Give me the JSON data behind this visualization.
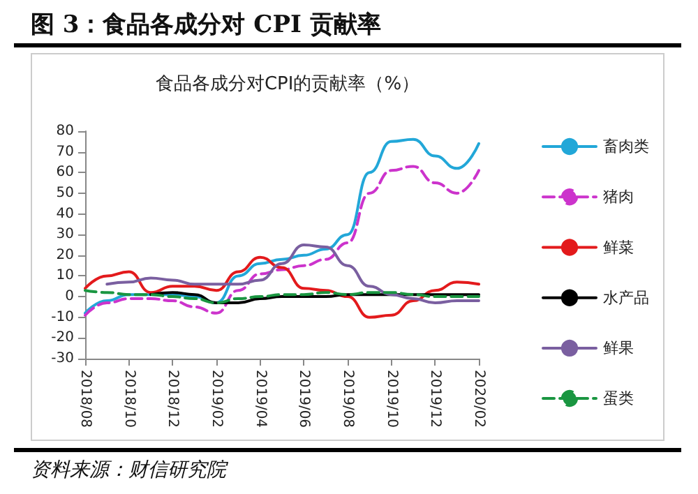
{
  "chart_data": {
    "type": "line",
    "title": "图 3：食品各成分对 CPI 贡献率",
    "subtitle": "食品各成分对CPI的贡献率（%）",
    "annotations": [
      "资料来源：财信研究院"
    ],
    "categories": [
      "2018/08",
      null,
      "2018/10",
      null,
      "2018/12",
      null,
      "2019/02",
      null,
      "2019/04",
      null,
      "2019/06",
      null,
      "2019/08",
      null,
      "2019/10",
      null,
      "2019/12",
      null,
      "2020/02"
    ],
    "series": [
      {
        "name": "畜肉类",
        "color": "#22a7d8",
        "line_style": "solid",
        "values": [
          -8,
          -2,
          1,
          1,
          1,
          0,
          -3,
          10,
          16,
          18,
          20,
          23,
          30,
          60,
          75,
          76,
          68,
          62,
          74
        ]
      },
      {
        "name": "猪肉",
        "color": "#cc33cc",
        "line_style": "dashed",
        "values": [
          -9,
          -3,
          -1,
          -1,
          -2,
          -5,
          -8,
          3,
          11,
          13,
          15,
          18,
          26,
          50,
          61,
          63,
          55,
          50,
          61
        ]
      },
      {
        "name": "鲜菜",
        "color": "#e31a1c",
        "line_style": "solid",
        "values": [
          4,
          10,
          12,
          2,
          5,
          5,
          3,
          12,
          19,
          14,
          4,
          3,
          0,
          -10,
          -9,
          -2,
          3,
          7,
          6
        ]
      },
      {
        "name": "水产品",
        "color": "#000000",
        "line_style": "solid",
        "values": [
          null,
          null,
          null,
          1,
          2,
          1,
          -3,
          -3,
          -1,
          0,
          0,
          0,
          1,
          1,
          1,
          1,
          1,
          1,
          1
        ]
      },
      {
        "name": "鲜果",
        "color": "#7a5fa0",
        "line_style": "solid",
        "values": [
          null,
          6,
          7,
          9,
          8,
          6,
          6,
          6,
          8,
          16,
          25,
          24,
          15,
          5,
          1,
          -1,
          -3,
          -2,
          -2
        ]
      },
      {
        "name": "蛋类",
        "color": "#1a9641",
        "line_style": "dashed",
        "values": [
          3,
          2,
          1,
          1,
          0,
          -1,
          -3,
          -1,
          0,
          1,
          1,
          2,
          1,
          2,
          2,
          1,
          0,
          0,
          0
        ]
      }
    ],
    "ylim": [
      -30,
      80
    ],
    "yticks": [
      -30,
      -20,
      -10,
      0,
      10,
      20,
      30,
      40,
      50,
      60,
      70,
      80
    ],
    "grid": false,
    "legend": "right",
    "marker": "none"
  }
}
